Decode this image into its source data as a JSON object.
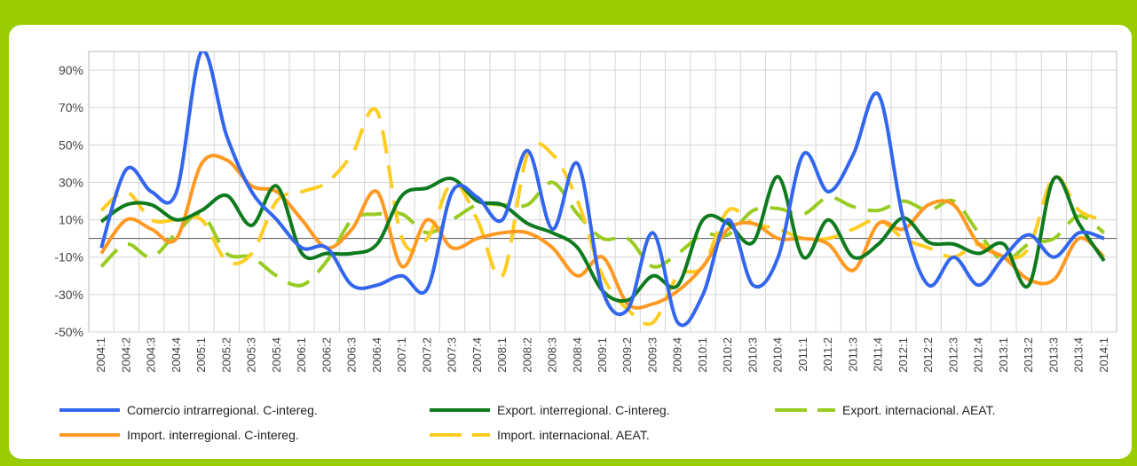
{
  "chart_data": {
    "type": "line",
    "title": "",
    "xlabel": "",
    "ylabel": "",
    "ylim": [
      -50,
      100
    ],
    "y_ticks": [
      "-50%",
      "-30%",
      "-10%",
      "10%",
      "30%",
      "50%",
      "70%",
      "90%"
    ],
    "y_tick_values": [
      -50,
      -30,
      -10,
      10,
      30,
      50,
      70,
      90
    ],
    "grid": true,
    "legend_position": "bottom",
    "categories": [
      "2004:1",
      "2004:2",
      "2004:3",
      "2004:4",
      "2005:1",
      "2005:2",
      "2005:3",
      "2005:4",
      "2006:1",
      "2006:2",
      "2006:3",
      "2006:4",
      "2007:1",
      "2007:2",
      "2007:3",
      "2007:4",
      "2008:1",
      "2008:2",
      "2008:3",
      "2008:4",
      "2009:1",
      "2009:2",
      "2009:3",
      "2009:4",
      "2010:1",
      "2010:2",
      "2010:3",
      "2010:4",
      "2011:1",
      "2011:2",
      "2011:3",
      "2011:4",
      "2012:1",
      "2012:2",
      "2012:3",
      "2012:4",
      "2013:1",
      "2013:2",
      "2013:3",
      "2013:4",
      "2014:1"
    ],
    "series": [
      {
        "name": "Comercio intrarregional. C-intereg.",
        "color": "#3366ee",
        "dash": "solid",
        "values": [
          -5,
          37,
          25,
          25,
          100,
          55,
          25,
          10,
          -5,
          -5,
          -25,
          -25,
          -20,
          -27,
          25,
          22,
          10,
          47,
          5,
          40,
          -28,
          -38,
          3,
          -45,
          -30,
          10,
          -25,
          -10,
          45,
          25,
          45,
          77,
          10,
          -25,
          -10,
          -25,
          -10,
          2,
          -10,
          3,
          0
        ]
      },
      {
        "name": "Export. interregional. C-intereg.",
        "color": "#0e7a1e",
        "dash": "solid",
        "values": [
          9,
          18,
          18,
          10,
          15,
          23,
          7,
          28,
          -8,
          -8,
          -8,
          -3,
          23,
          27,
          32,
          20,
          18,
          8,
          3,
          -5,
          -28,
          -33,
          -20,
          -25,
          10,
          8,
          -2,
          33,
          -10,
          10,
          -10,
          -3,
          11,
          -2,
          -3,
          -8,
          -3,
          -25,
          32,
          8,
          -12
        ]
      },
      {
        "name": "Export. internacional. AEAT.",
        "color": "#99cc22",
        "dash": "dashed",
        "values": [
          -15,
          -3,
          -10,
          3,
          13,
          -8,
          -10,
          -20,
          -25,
          -12,
          10,
          13,
          13,
          3,
          10,
          18,
          18,
          18,
          30,
          13,
          0,
          0,
          -15,
          -8,
          2,
          2,
          15,
          16,
          13,
          22,
          17,
          15,
          20,
          15,
          20,
          3,
          -12,
          -3,
          0,
          12,
          3
        ]
      },
      {
        "name": "Import. interregional. C-intereg.",
        "color": "#ff9922",
        "dash": "solid",
        "values": [
          -8,
          10,
          5,
          0,
          40,
          42,
          28,
          25,
          10,
          -5,
          5,
          25,
          -15,
          10,
          -5,
          0,
          3,
          3,
          -5,
          -20,
          -10,
          -35,
          -35,
          -28,
          -15,
          5,
          8,
          0,
          0,
          -3,
          -17,
          8,
          5,
          18,
          18,
          -3,
          -10,
          -22,
          -22,
          0,
          -10
        ]
      },
      {
        "name": "Import. internacional. AEAT.",
        "color": "#ffcc22",
        "dash": "dashed",
        "values": [
          15,
          25,
          10,
          10,
          10,
          -12,
          -8,
          20,
          25,
          30,
          45,
          68,
          0,
          0,
          30,
          10,
          -20,
          45,
          45,
          20,
          -20,
          -38,
          -45,
          -20,
          -15,
          15,
          8,
          5,
          0,
          0,
          5,
          10,
          0,
          -5,
          -10,
          -3,
          -10,
          -5,
          33,
          15,
          10
        ]
      }
    ]
  }
}
